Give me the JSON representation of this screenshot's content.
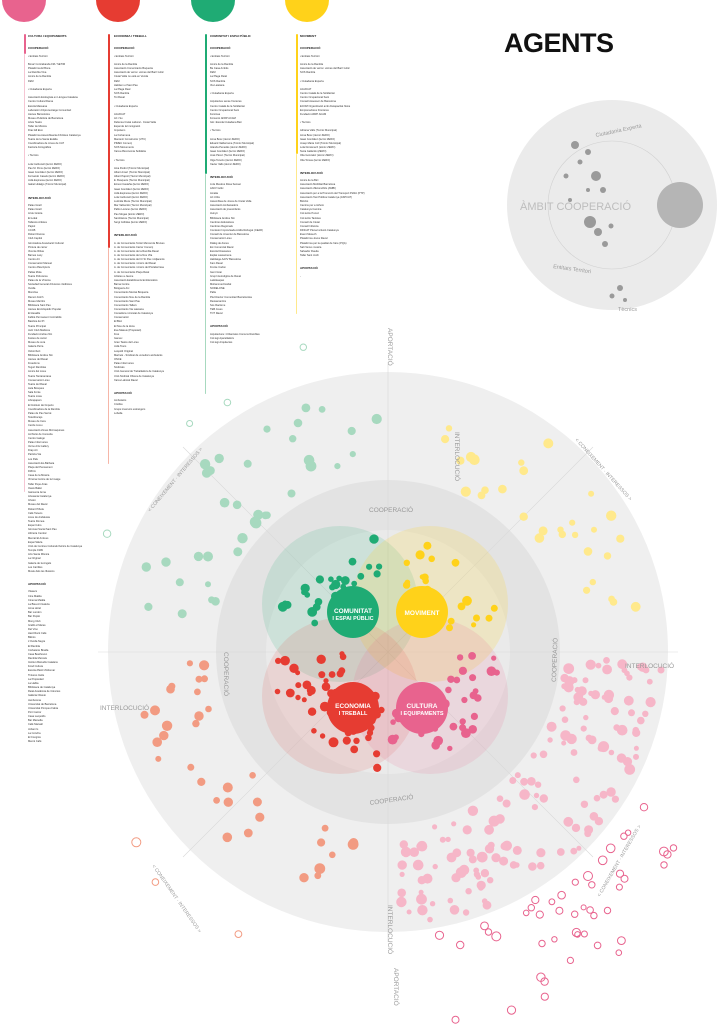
{
  "title": "AGENTS",
  "colors": {
    "pink": "#e8638e",
    "red": "#e63c32",
    "green": "#1fab74",
    "yellow": "#ffd21a",
    "pink_light": "#f6b6c8",
    "red_light": "#f29b82",
    "green_light": "#a7d9bf",
    "yellow_light": "#ffe98c",
    "grey_bg": "#e8e8e8",
    "grey_dot": "#9a9a9a"
  },
  "columns": [
    {
      "key": "cultura",
      "head": "CULTURA I EQUIPAMENTS",
      "sections": [
        {
          "label": "COOPERACIÓ",
          "text": "• Entitats Territori\n\nBona! Contrabanda FM / SETIM\nPlataforma El Bona\nLa Rambla Viva\nAmics de la Rambla\nFEM\n\n• Ciutadania Experta\n\nAssociació Ecologista en Llengua Catalana\nCentre Cultural Dama\nEscola Massana\nLaboratori d'Aprenentatge Comunitari\nAteneu Barcelonès\nMuseu d'Història de Barcelona\nArtés Teatre\nTaller de Música\nDrac Ell Eixo\nPlataforma Assemblearia d'Artistes Catalunya\nTeatre de la Santa Eulàlia\nCoordinadora de Joves de CAT\nFactoria Fotogràfica\n\n• Tècnics\n\nLola Carbonell (tècnic ZERO)\nPau M. Pons (tècnic ZERO)\nIsaac González (tècnic ZERO)\nFernando Casals (tècnic ZERO)\nJulià Espinosa (tècnic ZERO)\nIsabel Hidalgo (Tècnic Municipal)"
        },
        {
          "label": "INTERLOCUCIÓ",
          "text": "Palau Güell\nPalau Güell\nArxiu Gràcia\nEl Lokal\nTallerets Artistes\nPapiol\nCCCB\nRobert Ramos\nClub Capitol\nGimnàstica Associació Cultural\nPintura de carrer\nVicente Ribas\nBarnes Lacy\nCentre Art\nConservatori Manuel\nCentre d'Escriptors\nPallas Mola\nTeatre Poliorama\nPalau de la Virreina\nSociedad General d'Autores i Editores\nOvella\nMoncloa\nRamon Folch\nMuseu Marítim\nBiblioteca Sant Pau\nAteneu Enciclopèdic Popular\nEl Hesaille\nFabbé Permanent Contrabbè\nBasílica del Pi\nTeatre Principal\nJazz Club Mallorca\nFundació Andreu Nin\nFestes de carrer\nMuseu de cera\nGaleria Petra\nOsborrbort\nBiblioteca Andreu Nin\nAteneu del Raval\nFreedoms\nTeguri Ramblas\nAmics del Liceu\nTeatre Tantarantana\nConservatori Liceu\nTeatre del Raval\nAula Bosques\nSala Fonte\nTeatre Liceu\nLibrapapers\nEl Instituto del Imperio\nCoordinadora de la Rambla\nPalau de Pau Serrat\nTelecibocajo\nMuseu de Cera\nCercle Liceu\nAssociació Zones Microsquines\nArchivito de Consulta\nCentre Galego\nPalau Infermeres\nVerne Arts Gallery\nDrap Art\nPatricia Via\nLos Palu\nAssociació Ex-Bàrbara\nPlaça del Pensament\nFRICA\nCasa de la Música\nVirreina Centre de la Imatge\nTaller Pepe Arias\nOasis Ballet\nGaimenta Anna\nArtesania Catalunya\nInfusió\nMuseu del Raval\nRobert Piñela\nCafè Tanecs\nLiceu de Andalusia\nTeatre Romea\nEspai Cubo\nGimnasi Social Sant Pau\nLlibreria Central\nMercat El Antreus\nEspai Sàlvia\nUnió de Centres Culturals Ibèrics de Catalunya\nTemple 1999\nArts Santa Mònica\nLa Original\nGaleria de la Angels\nLes Carrilles\nMusiu dels les Illusions"
        },
        {
          "label": "APORTACIÓ",
          "text": "Vlasecs\nCine Maikla\nCinema Maikla\nLa Bisa Art Galeria\nAnna Hotel\nBar Lundon\nBar Pepito\nMong Club\nGrafiti el Mares\nDel Vino\nHard Rock Café\nBikinis\nL'Ovella Negra\nEl Rambla\nCorbaterie Braida\nCasa Beethoven\nRambla Mercats\nInstitut d'Estudis Catalans\nFood Cultura\nEscola d'Estil d'Abomar\nTintures Inelle\nLa Propiedad\nLa Habla\nBiblioteca de Catalunya\nReial Acadèmia de Ciències\nGalleria Ottavio\nJamborena\nUniversitat de Barcelona\nUniversitat Pompeu Fabra\nPort Cantor\nCasa Leopoldo\nBar Marsella\nCafè Marsall\nJohann's\nLa Concha\nEl Congrés\nMercè Café"
        }
      ]
    },
    {
      "key": "economia",
      "head": "ECONOMIA I TREBALL",
      "sections": [
        {
          "label": "COOPERACIÓ",
          "text": "• Entitats Territori\n\nAmics de la Rambla\nAssociació Comerciants Boqueria\nAssociació de veïns i veïnes del Barri Gòtic\nCiutat Vella no està en Venda\nFEM\nHabitem el Sant Pau\nLa Plaga Real\nSOS Rambla\nTot Raval\n\n• Ciutadania Experta\n\nAGUICAT\nArt i Su\nDefensa Ciutat Laboral - Ciutat Vella\nEspai de la Immigració\nImpulsem\nLa Fortamena\nMantenir Constructor (UTC)\nPIMEC Comerç\nSOS Monuments\nXarxa d'Economia Solidària\n\n• Tècnics\n\nAina Pedrol (Tècnic Municipal)\nAlbert Ameri (Tècnic Municipal)\nAlbert Papiol (Tècnic Municipal)\nE. Busquets (Tècnic Municipal)\nErnest Castaña (tècnic ZERO)\nIsaac González (tècnic ZERO)\nJulià Espinosa (tècnic ZERO)\nLola Carbonell (tècnic ZERO)\nLudmila Riera (Tècnic Municipal)\nMar Vallverdú (Tècnic Municipal)\nPablo Lozano (tècnic ZERO)\nPau Mogas (tècnic ZERO)\nSamblanca (Tècnic Municipal)\nSergi Collidas (tècnic ZERO)"
        },
        {
          "label": "INTERLOCUCIÓ",
          "text": "A. de Comerciants l'Antic Mercat de Bruixes\nA. de Comerciants Carrer Comerç\nA. de Comerciants de la Rambla Raval\nA. de Comerciants de la Nou Vila\nA. de Comerciants del C/ St Pau i Adjacents\nA. de Comerciants i Amics del Raval\nA. de Comerciants i Amics del Portaferrissa\nA. de Comerciants Plaça Reial\nArtistes a Jaume\nAssociació Establiments Emblemàtics\nBarna Centre\nBotiguers Arc\nComerciants Mercat Boqueria\nComerciants Nou de la Rambla\nComerciants Sant Pau\nComerciants Tallers\nComerciants Via Laietana\nConsellera i Amistat de Catalunya\nConservatori\nEl Bloc\nEl Nou de la dona\nEva Mateus (Propietari)\nFres\nGamex\nGran Teatre del Liceu\nJulià Tours\nLeopold Original\nMarinés - Sindicat de venedors ambulants\nONCE\nPalau Infermeres\nSindicats\nUnió General de Treballadors de Catalunya\nUnió Sindical Obrera de Catalunya\nXarxa Laboral Raval"
        },
        {
          "label": "APORTACIÓ",
          "text": "Ambulants\nCriollos\nGrups inversors estrangers\nLobella"
        }
      ]
    },
    {
      "key": "comunitat",
      "head": "COMUNITAT I ESPAI PÚBLIC",
      "sections": [
        {
          "label": "COOPERACIÓ",
          "text": "• Entitats Territori\n\nAmics de la Rambla\nBe Casa Ambits\nFEM\nLa Plaga Reial\nSOS Rambla\nVia Laietana\n\n• Ciutadania Experta\n\nArquitectes sense fronteres\nCentre Català de la Solidaritat\nCentre Ocupacional Sant\nFeminea\nFomento AFRP ACAM\nGlo i Escola Ciutadana Bari\n\n• Tècnics\n\nAnna Bosc (tècnic ZERO)\nEduard Valderrama (Tècnic Municipal)\nIolanda Penedès (tècnic ZERO)\nIsaac González (tècnic ZERO)\nJosé Pérez (Tècnic Municipal)\nOlga Tenorio (tècnic ZERO)\nXavier Valls (tècnic ZERO)"
        },
        {
          "label": "INTERLOCUCIÓ",
          "text": "A de Mestres Rosa Sensat\nAAVV Gòtic\nAmalia\nArt Urbà\nAssemblea de Joves de Ciutat Vella\nAssociació Ambaixadors\nAssociació de jovesinfants\nAvinyó\nBiblioteca Andreu Nin\nCambres Educatives\nCambres Regionals\nComissió Improvisada Antifa Rehogat (CEAR)\nConsell de Joventut de Barcelona\nConservatori Liceu\nDiàleg de dones\nEix Comercial Raval\nEscola Drassanes\nEsplai Lassarnena\nHabitatge AAVV Barcelona\nKam Raval\nFrente Codon\nGent Gran\nGrup Interreligiós de Raval\nLadokeapax\nMohammed Hahal\nNODELONE\nPalla\nPla Director Comunitari Barcelonista\nRestaurantins\nSos Racisme\nTEB Joves\nTOT Raval"
        },
        {
          "label": "APORTACIÓ",
          "text": "Arquitectura i Urbanistes Comuns Rambles\nCol·legi Aparelladors\nCol·legi Arquitectes"
        }
      ]
    },
    {
      "key": "moviment",
      "head": "MOVIMENT",
      "sections": [
        {
          "label": "COOPERACIÓ",
          "text": "• Entitats Territori\n\nAmics de la Rambla\nAssociació de veïns i veïnes del Barri Gòtic\nSOS Rambla\n\n• Ciutadania Experta\n\nAGUICAT\nCentre Català de la Solidaritat\nCentre Ocupacional Sant\nConsell Assessor de Barcelona\nECOM Organització amb discapacitat física\nEmprenedores Fronteres\nFundació AFRP ACAM\n\n• Tècnics\n\nAdriana Valls (Tècnic Municipal)\nAnna Bosc (tècnic ZERO)\nIsaac González (tècnic ZERO)\nJosep Maria Coll (Tècnic Municipal)\nLola Domènech (tècnic ZERO)\nNuria Gallardo (ZERO)\nOlia Gonzalez (tècnic ZERO)\nOlia Tomas (tècnic ZERO)"
        },
        {
          "label": "INTERLOCUCIÓ",
          "text": "Amics de la Bici\nAssociació Mobilitat Barcelona\nAssociació d'Ecomòbils (AMBI)\nAssociació per a la Promoció del Transport Públic (PTP)\nAssociació Taxi Pública Catalunya (ASPCAT)\nBiciclot\nCamins per a tothom\nCatalunya Camina\nCol·lectiu Punxó\nCol·lectiu Taxistes\nConsell de Ciutat\nConsell Infància\nDINCAT Plena Inclusió Catalunya\nEvent Mesech\nPlataforma Joves Raval\nPlataforma per la qualitat de l'aire (PQA)\nSalt Venus musica\nSalvador Rueda\nTaller Sant Jordi"
        },
        {
          "label": "APORTACIÓ",
          "text": "-"
        }
      ]
    }
  ],
  "ambit": {
    "label": "ÀMBIT COOPERACIÓ",
    "sub": [
      "Ciutadania Experta",
      "Entitats Territori",
      "Tècnics"
    ]
  },
  "rings": {
    "outer": "APORTACIÓ",
    "middle": "INTERLOCUCIÓ",
    "inner": "COOPERACIÓ",
    "arc": "< CONEIXEMENT · INTERESSOS >"
  },
  "hubs": [
    {
      "label": "COMUNITAT I ESPAI PÚBLIC",
      "color": "#1fab74"
    },
    {
      "label": "MOVIMENT",
      "color": "#ffd21a"
    },
    {
      "label": "ECONOMIA I TREBALL",
      "color": "#e63c32"
    },
    {
      "label": "CULTURA I EQUIPAMENTS",
      "color": "#e8638e"
    }
  ]
}
